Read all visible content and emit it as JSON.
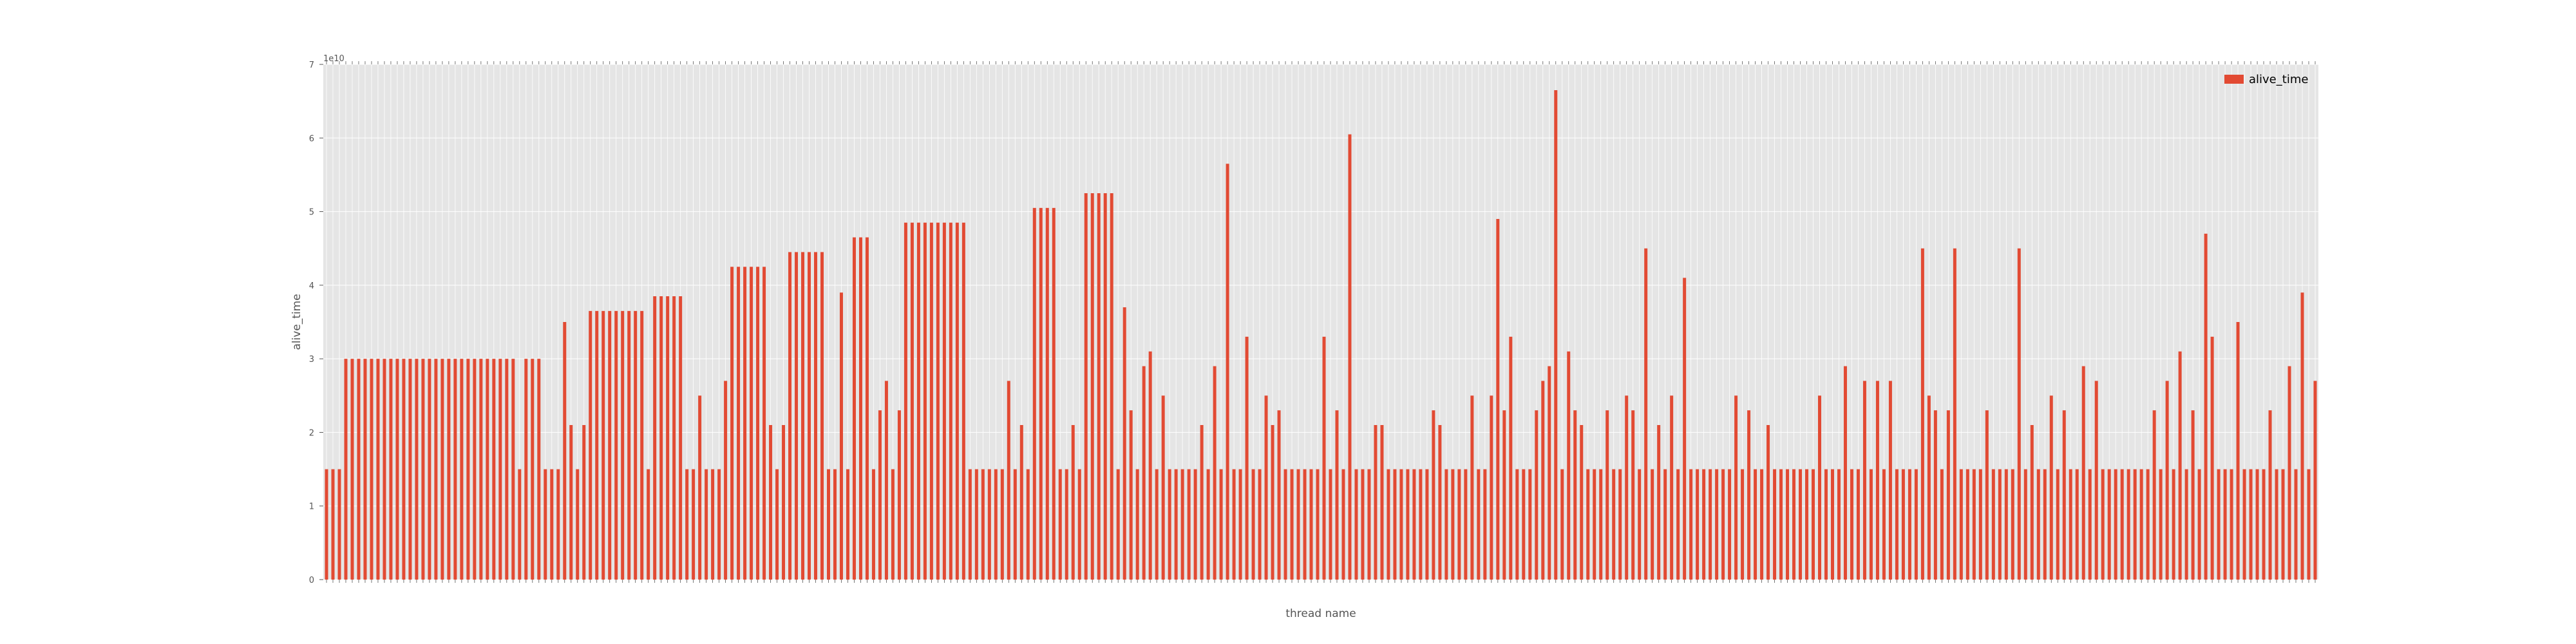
{
  "chart_data": {
    "type": "bar",
    "xlabel": "thread name",
    "ylabel": "alive_time",
    "y_multiplier_label": "1e10",
    "ylim": [
      0,
      7
    ],
    "yticks": [
      0,
      1,
      2,
      3,
      4,
      5,
      6,
      7
    ],
    "grid": true,
    "legend_position": "top-right",
    "series": [
      {
        "name": "alive_time",
        "color": "#e24a33",
        "values": [
          1.5,
          1.5,
          1.5,
          3.0,
          3.0,
          3.0,
          3.0,
          3.0,
          3.0,
          3.0,
          3.0,
          3.0,
          3.0,
          3.0,
          3.0,
          3.0,
          3.0,
          3.0,
          3.0,
          3.0,
          3.0,
          3.0,
          3.0,
          3.0,
          3.0,
          3.0,
          3.0,
          3.0,
          3.0,
          3.0,
          1.5,
          3.0,
          3.0,
          3.0,
          1.5,
          1.5,
          1.5,
          3.5,
          2.1,
          1.5,
          2.1,
          3.65,
          3.65,
          3.65,
          3.65,
          3.65,
          3.65,
          3.65,
          3.65,
          3.65,
          1.5,
          3.85,
          3.85,
          3.85,
          3.85,
          3.85,
          1.5,
          1.5,
          2.5,
          1.5,
          1.5,
          1.5,
          2.7,
          4.25,
          4.25,
          4.25,
          4.25,
          4.25,
          4.25,
          2.1,
          1.5,
          2.1,
          4.45,
          4.45,
          4.45,
          4.45,
          4.45,
          4.45,
          1.5,
          1.5,
          3.9,
          1.5,
          4.65,
          4.65,
          4.65,
          1.5,
          2.3,
          2.7,
          1.5,
          2.3,
          4.85,
          4.85,
          4.85,
          4.85,
          4.85,
          4.85,
          4.85,
          4.85,
          4.85,
          4.85,
          1.5,
          1.5,
          1.5,
          1.5,
          1.5,
          1.5,
          2.7,
          1.5,
          2.1,
          1.5,
          5.05,
          5.05,
          5.05,
          5.05,
          1.5,
          1.5,
          2.1,
          1.5,
          5.25,
          5.25,
          5.25,
          5.25,
          5.25,
          1.5,
          3.7,
          2.3,
          1.5,
          2.9,
          3.1,
          1.5,
          2.5,
          1.5,
          1.5,
          1.5,
          1.5,
          1.5,
          2.1,
          1.5,
          2.9,
          1.5,
          5.65,
          1.5,
          1.5,
          3.3,
          1.5,
          1.5,
          2.5,
          2.1,
          2.3,
          1.5,
          1.5,
          1.5,
          1.5,
          1.5,
          1.5,
          3.3,
          1.5,
          2.3,
          1.5,
          6.05,
          1.5,
          1.5,
          1.5,
          2.1,
          2.1,
          1.5,
          1.5,
          1.5,
          1.5,
          1.5,
          1.5,
          1.5,
          2.3,
          2.1,
          1.5,
          1.5,
          1.5,
          1.5,
          2.5,
          1.5,
          1.5,
          2.5,
          4.9,
          2.3,
          3.3,
          1.5,
          1.5,
          1.5,
          2.3,
          2.7,
          2.9,
          6.65,
          1.5,
          3.1,
          2.3,
          2.1,
          1.5,
          1.5,
          1.5,
          2.3,
          1.5,
          1.5,
          2.5,
          2.3,
          1.5,
          4.5,
          1.5,
          2.1,
          1.5,
          2.5,
          1.5,
          4.1,
          1.5,
          1.5,
          1.5,
          1.5,
          1.5,
          1.5,
          1.5,
          2.5,
          1.5,
          2.3,
          1.5,
          1.5,
          2.1,
          1.5,
          1.5,
          1.5,
          1.5,
          1.5,
          1.5,
          1.5,
          2.5,
          1.5,
          1.5,
          1.5,
          2.9,
          1.5,
          1.5,
          2.7,
          1.5,
          2.7,
          1.5,
          2.7,
          1.5,
          1.5,
          1.5,
          1.5,
          4.5,
          2.5,
          2.3,
          1.5,
          2.3,
          4.5,
          1.5,
          1.5,
          1.5,
          1.5,
          2.3,
          1.5,
          1.5,
          1.5,
          1.5,
          4.5,
          1.5,
          2.1,
          1.5,
          1.5,
          2.5,
          1.5,
          2.3,
          1.5,
          1.5,
          2.9,
          1.5,
          2.7,
          1.5,
          1.5,
          1.5,
          1.5,
          1.5,
          1.5,
          1.5,
          1.5,
          2.3,
          1.5,
          2.7,
          1.5,
          3.1,
          1.5,
          2.3,
          1.5,
          4.7,
          3.3,
          1.5,
          1.5,
          1.5,
          3.5,
          1.5,
          1.5,
          1.5,
          1.5,
          2.3,
          1.5,
          1.5,
          2.9,
          1.5,
          3.9,
          1.5,
          2.7
        ]
      }
    ]
  }
}
